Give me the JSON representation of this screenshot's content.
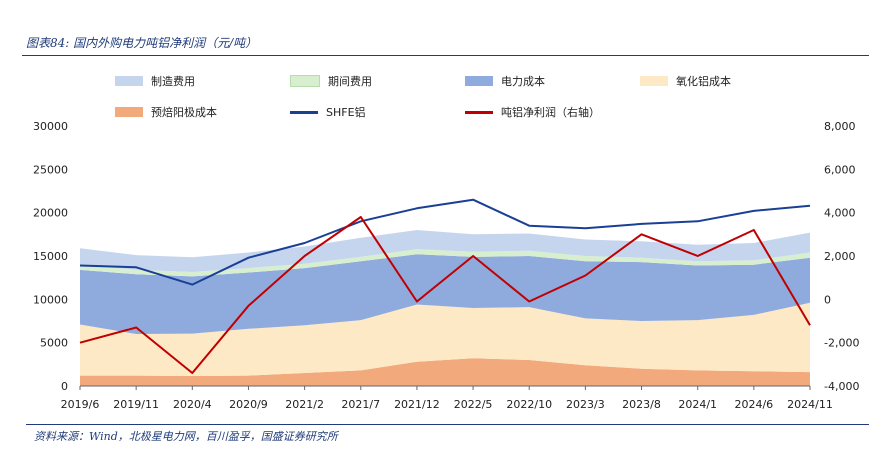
{
  "title": "图表84: 国内外购电力吨铝净利润（元/吨）",
  "source": "资料来源：Wind，北极星电力网，百川盈孚，国盛证券研究所",
  "chart_data": {
    "type": "area",
    "x": [
      "2019/6",
      "2019/11",
      "2020/4",
      "2020/9",
      "2021/2",
      "2021/7",
      "2021/12",
      "2022/5",
      "2022/10",
      "2023/3",
      "2023/8",
      "2024/1",
      "2024/6",
      "2024/11"
    ],
    "ylim_left": [
      0,
      30000
    ],
    "ylim_right": [
      -4000,
      8000
    ],
    "yticks_left": [
      "0",
      "5000",
      "10000",
      "15000",
      "20000",
      "25000",
      "30000"
    ],
    "yticks_right": [
      "-4,000",
      "-2,000",
      "0",
      "2,000",
      "4,000",
      "6,000",
      "8,000"
    ],
    "legend_placement": "top",
    "series": [
      {
        "name": "预焙阳极成本",
        "kind": "stack",
        "color": "#f2a97c",
        "values": [
          1200,
          1200,
          1150,
          1200,
          1500,
          1800,
          2800,
          3200,
          3000,
          2400,
          2000,
          1800,
          1700,
          1600
        ]
      },
      {
        "name": "氧化铝成本",
        "kind": "stack",
        "color": "#fde9c6",
        "values": [
          5900,
          4800,
          4900,
          5400,
          5500,
          5800,
          6600,
          5800,
          6100,
          5400,
          5500,
          5800,
          6500,
          8000
        ]
      },
      {
        "name": "电力成本",
        "kind": "stack",
        "color": "#8faadc",
        "values": [
          6300,
          6900,
          6600,
          6500,
          6600,
          6800,
          5800,
          5900,
          5900,
          6600,
          6800,
          6300,
          5800,
          5200
        ]
      },
      {
        "name": "期间费用",
        "kind": "stack",
        "color": "#d7efcf",
        "values": [
          600,
          500,
          500,
          500,
          500,
          500,
          600,
          600,
          600,
          600,
          500,
          500,
          500,
          600
        ]
      },
      {
        "name": "制造费用",
        "kind": "stack",
        "color": "#c6d5ee",
        "values": [
          1900,
          1700,
          1700,
          1800,
          2000,
          2200,
          2200,
          2000,
          2000,
          1900,
          1900,
          1900,
          2000,
          2300
        ]
      },
      {
        "name": "SHFE铝",
        "kind": "line",
        "axis": "left",
        "color": "#1a3f96",
        "values": [
          13900,
          13700,
          11700,
          14800,
          16500,
          19000,
          20500,
          21500,
          18500,
          18200,
          18700,
          19000,
          20200,
          20800
        ]
      },
      {
        "name": "吨铝净利润（右轴）",
        "kind": "line",
        "axis": "right",
        "color": "#c00000",
        "values": [
          -2000,
          -1300,
          -3400,
          -300,
          2000,
          3800,
          -100,
          2000,
          -100,
          1100,
          3000,
          2000,
          3200,
          -1200
        ]
      }
    ]
  },
  "colors": {
    "frame": "#1f3b7a"
  }
}
